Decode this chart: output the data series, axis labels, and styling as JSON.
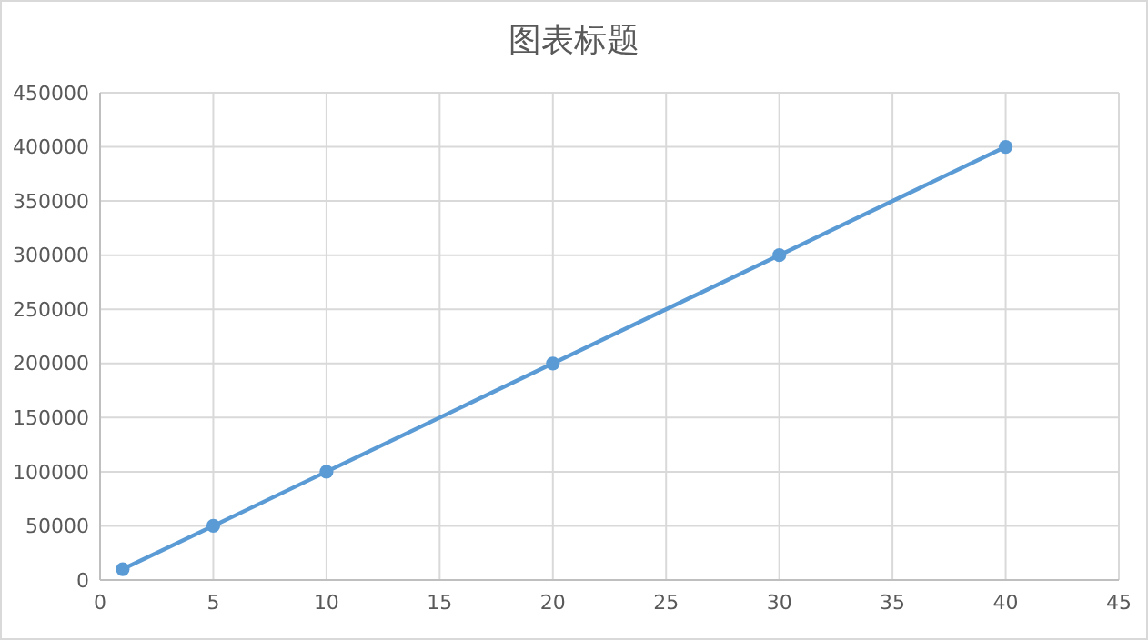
{
  "chart_data": {
    "type": "line",
    "title": "图表标题",
    "x": [
      1,
      5,
      10,
      20,
      30,
      40
    ],
    "series": [
      {
        "color": "#5b9bd5",
        "values": [
          10000,
          50000,
          100000,
          200000,
          300000,
          400000
        ]
      }
    ],
    "xlim": [
      0,
      45
    ],
    "xticks": [
      0,
      5,
      10,
      15,
      20,
      25,
      30,
      35,
      40,
      45
    ],
    "ylim": [
      0,
      450000
    ],
    "yticks": [
      0,
      50000,
      100000,
      150000,
      200000,
      250000,
      300000,
      350000,
      400000,
      450000
    ],
    "grid": true,
    "marker": "circle",
    "line_style": "solid"
  }
}
